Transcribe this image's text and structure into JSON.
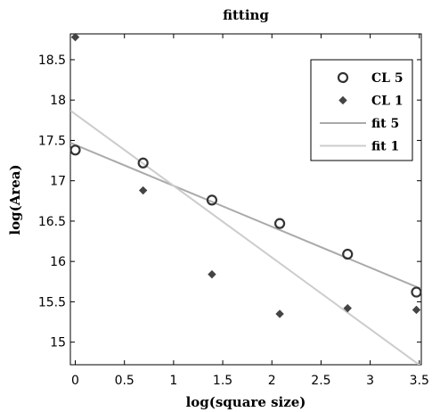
{
  "chart_data": {
    "type": "scatter",
    "title": "fitting",
    "xlabel": "log(square size)",
    "ylabel": "log(Area)",
    "xlim": [
      -0.05,
      3.52
    ],
    "ylim": [
      14.72,
      18.82
    ],
    "xticks": [
      0,
      0.5,
      1,
      1.5,
      2,
      2.5,
      3,
      3.5
    ],
    "xtick_labels": [
      "0",
      "0.5",
      "1",
      "1.5",
      "2",
      "2.5",
      "3",
      "3.5"
    ],
    "yticks": [
      15,
      15.5,
      16,
      16.5,
      17,
      17.5,
      18,
      18.5
    ],
    "ytick_labels": [
      "15",
      "15.5",
      "16",
      "16.5",
      "17",
      "17.5",
      "18",
      "18.5"
    ],
    "grid": false,
    "legend_position": "top-right",
    "series": [
      {
        "name": "CL 5",
        "kind": "points",
        "marker": "open-circle",
        "color": "#333333",
        "x": [
          0,
          0.69,
          1.39,
          2.08,
          2.77,
          3.47
        ],
        "y": [
          17.38,
          17.22,
          16.76,
          16.47,
          16.09,
          15.62
        ]
      },
      {
        "name": "CL 1",
        "kind": "points",
        "marker": "filled-diamond",
        "color": "#444444",
        "x": [
          0,
          0.69,
          1.39,
          2.08,
          2.77,
          3.47
        ],
        "y": [
          18.78,
          16.88,
          15.84,
          15.35,
          15.42,
          15.4
        ]
      },
      {
        "name": "fit 5",
        "kind": "line",
        "color": "#aaaaaa",
        "x": [
          -0.05,
          3.52
        ],
        "y": [
          17.47,
          15.66
        ]
      },
      {
        "name": "fit 1",
        "kind": "line",
        "color": "#cccccc",
        "x": [
          -0.05,
          3.52
        ],
        "y": [
          17.87,
          14.7
        ]
      }
    ]
  }
}
